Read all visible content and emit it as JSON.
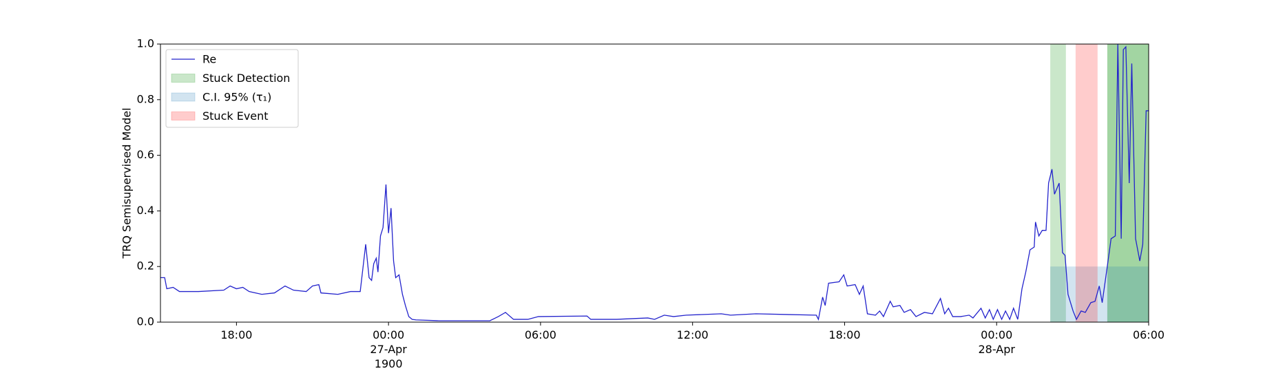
{
  "chart_data": {
    "type": "line",
    "ylabel": "TRQ Semisupervised Model",
    "xlim": [
      "1900-04-26T15:00",
      "1900-04-28T06:00"
    ],
    "ylim": [
      0,
      1
    ],
    "xticks": [
      {
        "value": "1900-04-26T18:00",
        "label": "18:00"
      },
      {
        "value": "1900-04-27T00:00",
        "label": "00:00\n27-Apr\n1900"
      },
      {
        "value": "1900-04-27T06:00",
        "label": "06:00"
      },
      {
        "value": "1900-04-27T12:00",
        "label": "12:00"
      },
      {
        "value": "1900-04-27T18:00",
        "label": "18:00"
      },
      {
        "value": "1900-04-28T00:00",
        "label": "00:00\n28-Apr"
      },
      {
        "value": "1900-04-28T06:00",
        "label": "06:00"
      }
    ],
    "yticks": [
      {
        "value": 0,
        "label": "0.0"
      },
      {
        "value": 0.2,
        "label": "0.2"
      },
      {
        "value": 0.4,
        "label": "0.4"
      },
      {
        "value": 0.6,
        "label": "0.6"
      },
      {
        "value": 0.8,
        "label": "0.8"
      },
      {
        "value": 1,
        "label": "1.0"
      }
    ],
    "legend": "upper left",
    "x": [
      "1900-04-26T15:00",
      "1900-04-26T15:10",
      "1900-04-26T15:15",
      "1900-04-26T15:30",
      "1900-04-26T15:45",
      "1900-04-26T16:30",
      "1900-04-26T17:30",
      "1900-04-26T17:45",
      "1900-04-26T18:00",
      "1900-04-26T18:15",
      "1900-04-26T18:30",
      "1900-04-26T19:00",
      "1900-04-26T19:30",
      "1900-04-26T19:55",
      "1900-04-26T20:15",
      "1900-04-26T20:45",
      "1900-04-26T21:00",
      "1900-04-26T21:15",
      "1900-04-26T21:20",
      "1900-04-26T22:00",
      "1900-04-26T22:30",
      "1900-04-26T22:53",
      "1900-04-26T23:06",
      "1900-04-26T23:14",
      "1900-04-26T23:20",
      "1900-04-26T23:25",
      "1900-04-26T23:31",
      "1900-04-26T23:35",
      "1900-04-26T23:41",
      "1900-04-26T23:47",
      "1900-04-26T23:54",
      "1900-04-27T00:00",
      "1900-04-27T00:06",
      "1900-04-27T00:12",
      "1900-04-27T00:17",
      "1900-04-27T00:25",
      "1900-04-27T00:33",
      "1900-04-27T00:40",
      "1900-04-27T00:48",
      "1900-04-27T00:56",
      "1900-04-27T01:05",
      "1900-04-27T02:00",
      "1900-04-27T03:00",
      "1900-04-27T04:00",
      "1900-04-27T04:20",
      "1900-04-27T04:37",
      "1900-04-27T04:56",
      "1900-04-27T05:30",
      "1900-04-27T05:55",
      "1900-04-27T07:50",
      "1900-04-27T07:59",
      "1900-04-27T09:00",
      "1900-04-27T10:14",
      "1900-04-27T10:30",
      "1900-04-27T10:53",
      "1900-04-27T11:15",
      "1900-04-27T11:45",
      "1900-04-27T13:08",
      "1900-04-27T13:30",
      "1900-04-27T14:30",
      "1900-04-27T16:53",
      "1900-04-27T16:58",
      "1900-04-27T17:08",
      "1900-04-27T17:14",
      "1900-04-27T17:22",
      "1900-04-27T17:47",
      "1900-04-27T17:58",
      "1900-04-27T18:06",
      "1900-04-27T18:25",
      "1900-04-27T18:35",
      "1900-04-27T18:44",
      "1900-04-27T18:54",
      "1900-04-27T19:13",
      "1900-04-27T19:23",
      "1900-04-27T19:32",
      "1900-04-27T19:48",
      "1900-04-27T19:55",
      "1900-04-27T20:11",
      "1900-04-27T20:21",
      "1900-04-27T20:36",
      "1900-04-27T20:49",
      "1900-04-27T21:09",
      "1900-04-27T21:28",
      "1900-04-27T21:47",
      "1900-04-27T21:57",
      "1900-04-27T22:06",
      "1900-04-27T22:16",
      "1900-04-27T22:35",
      "1900-04-27T22:55",
      "1900-04-27T23:04",
      "1900-04-27T23:23",
      "1900-04-27T23:33",
      "1900-04-27T23:43",
      "1900-04-27T23:52",
      "1900-04-28T00:02",
      "1900-04-28T00:12",
      "1900-04-28T00:21",
      "1900-04-28T00:31",
      "1900-04-28T00:40",
      "1900-04-28T00:50",
      "1900-04-28T01:00",
      "1900-04-28T01:09",
      "1900-04-28T01:19",
      "1900-04-28T01:29",
      "1900-04-28T01:32",
      "1900-04-28T01:40",
      "1900-04-28T01:48",
      "1900-04-28T01:57",
      "1900-04-28T02:03",
      "1900-04-28T02:11",
      "1900-04-28T02:17",
      "1900-04-28T02:28",
      "1900-04-28T02:36",
      "1900-04-28T02:42",
      "1900-04-28T02:49",
      "1900-04-28T03:01",
      "1900-04-28T03:09",
      "1900-04-28T03:20",
      "1900-04-28T03:30",
      "1900-04-28T03:43",
      "1900-04-28T03:53",
      "1900-04-28T04:03",
      "1900-04-28T04:10",
      "1900-04-28T04:22",
      "1900-04-28T04:31",
      "1900-04-28T04:41",
      "1900-04-28T04:47",
      "1900-04-28T04:55",
      "1900-04-28T05:00",
      "1900-04-28T05:06",
      "1900-04-28T05:14",
      "1900-04-28T05:20",
      "1900-04-28T05:29",
      "1900-04-28T05:39",
      "1900-04-28T05:46",
      "1900-04-28T05:54",
      "1900-04-28T06:00"
    ],
    "series": [
      {
        "name": "Re",
        "color": "#2222cc",
        "values": [
          0.16,
          0.16,
          0.12,
          0.125,
          0.11,
          0.11,
          0.115,
          0.13,
          0.12,
          0.125,
          0.11,
          0.1,
          0.105,
          0.13,
          0.115,
          0.11,
          0.13,
          0.135,
          0.105,
          0.1,
          0.11,
          0.11,
          0.28,
          0.16,
          0.15,
          0.21,
          0.23,
          0.18,
          0.31,
          0.34,
          0.495,
          0.32,
          0.41,
          0.22,
          0.16,
          0.17,
          0.1,
          0.06,
          0.02,
          0.01,
          0.008,
          0.005,
          0.005,
          0.005,
          0.02,
          0.035,
          0.01,
          0.01,
          0.02,
          0.022,
          0.01,
          0.01,
          0.015,
          0.01,
          0.025,
          0.02,
          0.025,
          0.03,
          0.025,
          0.03,
          0.025,
          0.01,
          0.09,
          0.06,
          0.14,
          0.145,
          0.17,
          0.13,
          0.135,
          0.1,
          0.13,
          0.03,
          0.025,
          0.04,
          0.02,
          0.075,
          0.055,
          0.06,
          0.035,
          0.045,
          0.02,
          0.035,
          0.03,
          0.085,
          0.03,
          0.05,
          0.02,
          0.02,
          0.025,
          0.015,
          0.05,
          0.015,
          0.045,
          0.01,
          0.045,
          0.01,
          0.04,
          0.01,
          0.05,
          0.01,
          0.12,
          0.18,
          0.26,
          0.27,
          0.36,
          0.31,
          0.33,
          0.33,
          0.5,
          0.55,
          0.46,
          0.5,
          0.25,
          0.24,
          0.1,
          0.04,
          0.01,
          0.04,
          0.035,
          0.07,
          0.075,
          0.13,
          0.07,
          0.2,
          0.3,
          0.31,
          1.0,
          0.3,
          0.98,
          0.99,
          0.5,
          0.93,
          0.3,
          0.22,
          0.28,
          0.76,
          0.76
        ]
      }
    ],
    "spans": [
      {
        "name": "Stuck Detection",
        "color": "#2ca02c",
        "opacity": 0.25,
        "ranges": [
          [
            "1900-04-28T02:07",
            "1900-04-28T02:44"
          ],
          [
            "1900-04-28T04:22",
            "1900-04-28T06:00"
          ],
          [
            "1900-04-28T04:22",
            "1900-04-28T06:00"
          ]
        ]
      },
      {
        "name": "C.I. 95% (τ₁)",
        "color": "#1f77b4",
        "opacity": 0.2,
        "y": [
          0,
          0.2
        ],
        "ranges": [
          [
            "1900-04-28T02:07",
            "1900-04-28T06:00"
          ]
        ]
      },
      {
        "name": "Stuck Event",
        "color": "#ff0000",
        "opacity": 0.2,
        "ranges": [
          [
            "1900-04-28T03:07",
            "1900-04-28T03:59"
          ]
        ]
      }
    ]
  }
}
